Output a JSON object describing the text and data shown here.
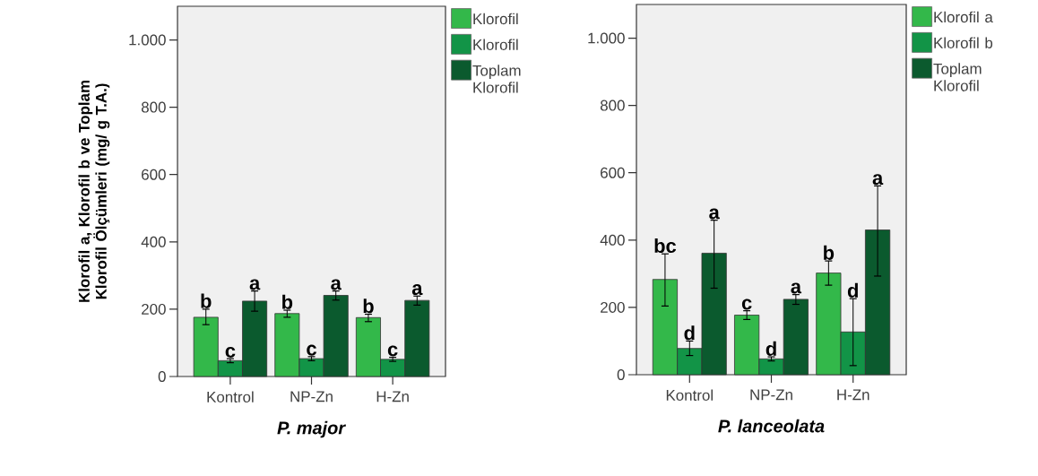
{
  "chart_data": [
    {
      "type": "bar",
      "xlabel": "*P. major*",
      "ylabel": "Klorofil a, Klorofil b ve Toplam Klorofil Ölçümleri (mg/ g T.A.)",
      "categories": [
        "Kontrol",
        "NP-Zn",
        "H-Zn"
      ],
      "ylim": [
        0,
        1100
      ],
      "yticks": [
        0,
        200,
        400,
        600,
        800,
        {
          "value": 1000,
          "label": "1.000"
        }
      ],
      "legend": "right",
      "series": [
        {
          "name": "Klorofil",
          "color": "#33b84a",
          "values": [
            176,
            187,
            175
          ],
          "errors": [
            [
              154,
              200
            ],
            [
              176,
              197
            ],
            [
              163,
              185
            ]
          ],
          "value_labels": [
            "b",
            "b",
            "b"
          ]
        },
        {
          "name": "Klorofil",
          "color": "#129447",
          "values": [
            47,
            53,
            51
          ],
          "errors": [
            [
              41,
              53
            ],
            [
              47,
              59
            ],
            [
              45,
              57
            ]
          ],
          "value_labels": [
            "c",
            "c",
            "c"
          ]
        },
        {
          "name": "Toplam Klorofil",
          "color": "#0b5a2e",
          "values": [
            224,
            241,
            226
          ],
          "errors": [
            [
              194,
              254
            ],
            [
              227,
              254
            ],
            [
              212,
              239
            ]
          ],
          "value_labels": [
            "a",
            "a",
            "a"
          ]
        }
      ]
    },
    {
      "type": "bar",
      "xlabel": "*P. lanceolata*",
      "categories": [
        "Kontrol",
        "NP-Zn",
        "H-Zn"
      ],
      "ylim": [
        0,
        1100
      ],
      "yticks": [
        0,
        200,
        400,
        600,
        800,
        {
          "value": 1000,
          "label": "1.000"
        }
      ],
      "legend": "right",
      "series": [
        {
          "name": "Klorofil a",
          "color": "#33b84a",
          "values": [
            283,
            177,
            302
          ],
          "errors": [
            [
              204,
              359
            ],
            [
              164,
              190
            ],
            [
              266,
              338
            ]
          ],
          "value_labels": [
            "bc",
            "c",
            "b"
          ]
        },
        {
          "name": "Klorofil b",
          "color": "#129447",
          "values": [
            78,
            47,
            127
          ],
          "errors": [
            [
              57,
              100
            ],
            [
              41,
              53
            ],
            [
              27,
              226
            ]
          ],
          "value_labels": [
            "d",
            "d",
            "d"
          ]
        },
        {
          "name": "Toplam Klorofil",
          "color": "#0b5a2e",
          "values": [
            361,
            224,
            430
          ],
          "errors": [
            [
              257,
              459
            ],
            [
              209,
              238
            ],
            [
              293,
              561
            ]
          ],
          "value_labels": [
            "a",
            "a",
            "a"
          ]
        }
      ]
    }
  ]
}
